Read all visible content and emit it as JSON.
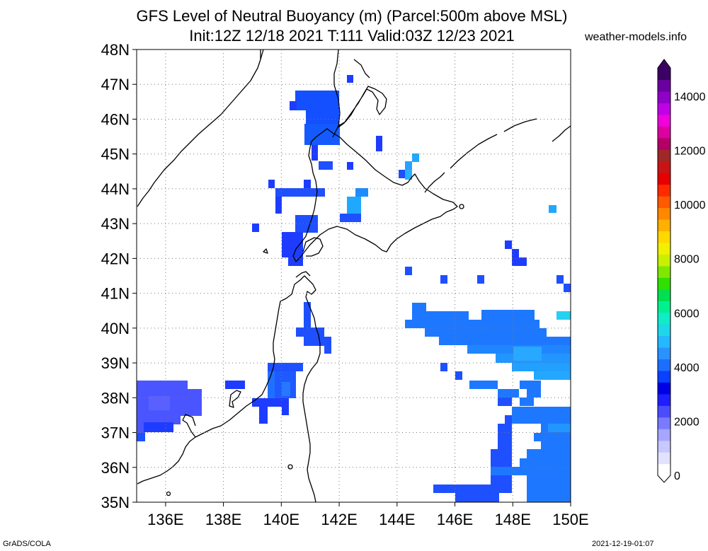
{
  "title_line1": "GFS Level of Neutral Buoyancy (m) (Parcel:500m above MSL)",
  "title_line2": "Init:12Z 12/18 2021 T:111 Valid:03Z 12/23 2021",
  "site": "weather-models.info",
  "footer_left": "GrADS/COLA",
  "footer_right": "2021-12-19-01:07",
  "map": {
    "lon_range": [
      135,
      150
    ],
    "lat_range": [
      35,
      48
    ],
    "lon_ticks": [
      "136E",
      "138E",
      "140E",
      "142E",
      "144E",
      "146E",
      "148E",
      "150E"
    ],
    "lat_ticks": [
      "35N",
      "36N",
      "37N",
      "38N",
      "39N",
      "40N",
      "41N",
      "42N",
      "43N",
      "44N",
      "45N",
      "46N",
      "47N",
      "48N"
    ],
    "grid": "dotted"
  },
  "colorbar": {
    "labels": [
      "0",
      "2000",
      "4000",
      "6000",
      "8000",
      "10000",
      "12000",
      "14000"
    ],
    "colors": [
      "#ffffff",
      "#e2e2ff",
      "#c8c8ff",
      "#a6a6ff",
      "#7a7aff",
      "#4c4cff",
      "#1e1eff",
      "#0000e6",
      "#0a40ff",
      "#1c6eff",
      "#2a92ff",
      "#26b8ff",
      "#20d6ea",
      "#10ecc8",
      "#00f090",
      "#00e050",
      "#30e000",
      "#80e800",
      "#c8f000",
      "#f0f000",
      "#ffd800",
      "#ffb000",
      "#ff8800",
      "#ff5a00",
      "#ff2a00",
      "#e60000",
      "#c81414",
      "#a02828",
      "#b40064",
      "#dc00a0",
      "#f000dc",
      "#c000e6",
      "#9000c8",
      "#6a00a0",
      "#3c0064"
    ]
  }
}
